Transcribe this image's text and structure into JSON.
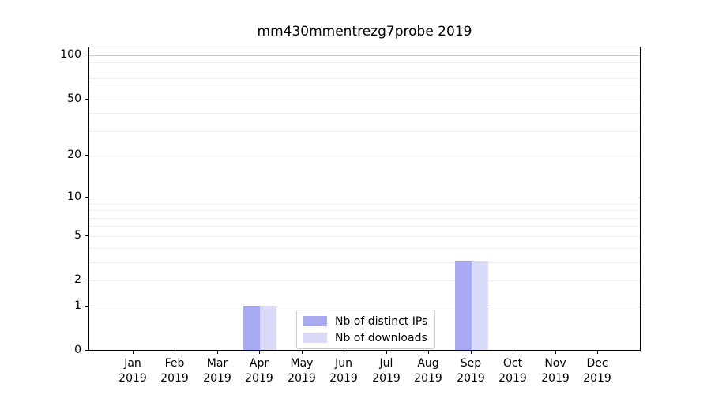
{
  "chart_data": {
    "type": "bar",
    "title": "mm430mmentrezg7probe 2019",
    "categories": [
      "Jan",
      "Feb",
      "Mar",
      "Apr",
      "May",
      "Jun",
      "Jul",
      "Aug",
      "Sep",
      "Oct",
      "Nov",
      "Dec"
    ],
    "year_label": "2019",
    "series": [
      {
        "name": "Nb of distinct IPs",
        "color": "#aaaaf2",
        "values": [
          0,
          0,
          0,
          1,
          0,
          0,
          0,
          0,
          3,
          0,
          0,
          0
        ]
      },
      {
        "name": "Nb of downloads",
        "color": "#d9d9f8",
        "values": [
          0,
          0,
          0,
          1,
          0,
          0,
          0,
          0,
          3,
          0,
          0,
          0
        ]
      }
    ],
    "scale": "log1p",
    "ylim": [
      0,
      115
    ],
    "y_major_ticks": [
      0,
      1,
      2,
      5,
      10,
      20,
      50,
      100
    ],
    "y_light_gridlines": [
      2,
      3,
      4,
      5,
      6,
      7,
      8,
      9,
      20,
      30,
      40,
      50,
      60,
      70,
      80,
      90
    ],
    "y_emphasized_gridlines": [
      1,
      10,
      100
    ],
    "grid_color_minor": "#ededed",
    "grid_color_major": "#c9c9c9",
    "legend_position": "lower center",
    "grid": "on"
  }
}
